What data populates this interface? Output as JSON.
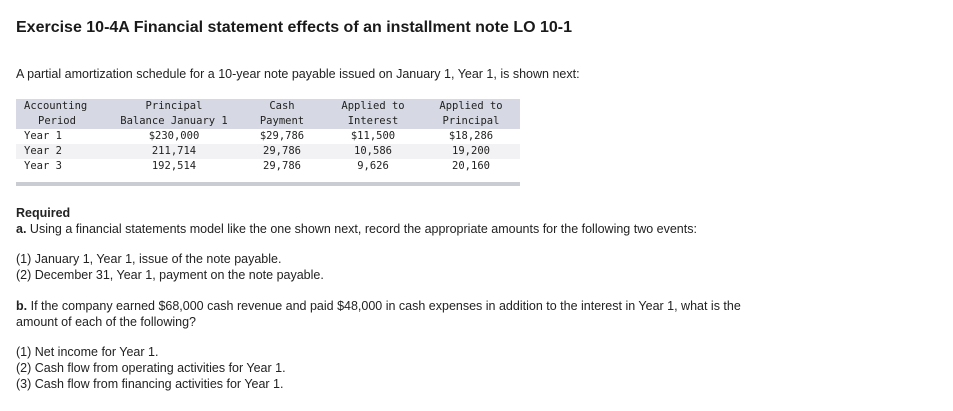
{
  "header": {
    "title": "Exercise 10-4A Financial statement effects of an installment note LO 10-1"
  },
  "intro": "A partial amortization schedule for a 10-year note payable issued on January 1, Year 1, is shown next:",
  "table": {
    "headers": [
      [
        "Accounting",
        "Period"
      ],
      [
        "Principal",
        "Balance January 1"
      ],
      [
        "Cash",
        "Payment"
      ],
      [
        "Applied to",
        "Interest"
      ],
      [
        "Applied to",
        "Principal"
      ]
    ],
    "rows": [
      [
        "Year 1",
        "$230,000",
        "$29,786",
        "$11,500",
        "$18,286"
      ],
      [
        "Year 2",
        "211,714",
        "29,786",
        "10,586",
        "19,200"
      ],
      [
        "Year 3",
        "192,514",
        "29,786",
        "9,626",
        "20,160"
      ]
    ]
  },
  "required": "Required",
  "part_a": {
    "label": "a.",
    "text": "Using a financial statements model like the one shown next, record the appropriate amounts for the following two events:",
    "items": [
      "(1) January 1, Year 1, issue of the note payable.",
      "(2) December 31, Year 1, payment on the note payable."
    ]
  },
  "part_b": {
    "label": "b.",
    "text": [
      "If the company earned $68,000 cash revenue and paid $48,000 in cash expenses in addition to the interest in Year 1, what is the",
      "amount of each of the following?"
    ],
    "items": [
      "(1) Net income for Year 1.",
      "(2) Cash flow from operating activities for Year 1.",
      "(3) Cash flow from financing activities for Year 1."
    ]
  }
}
